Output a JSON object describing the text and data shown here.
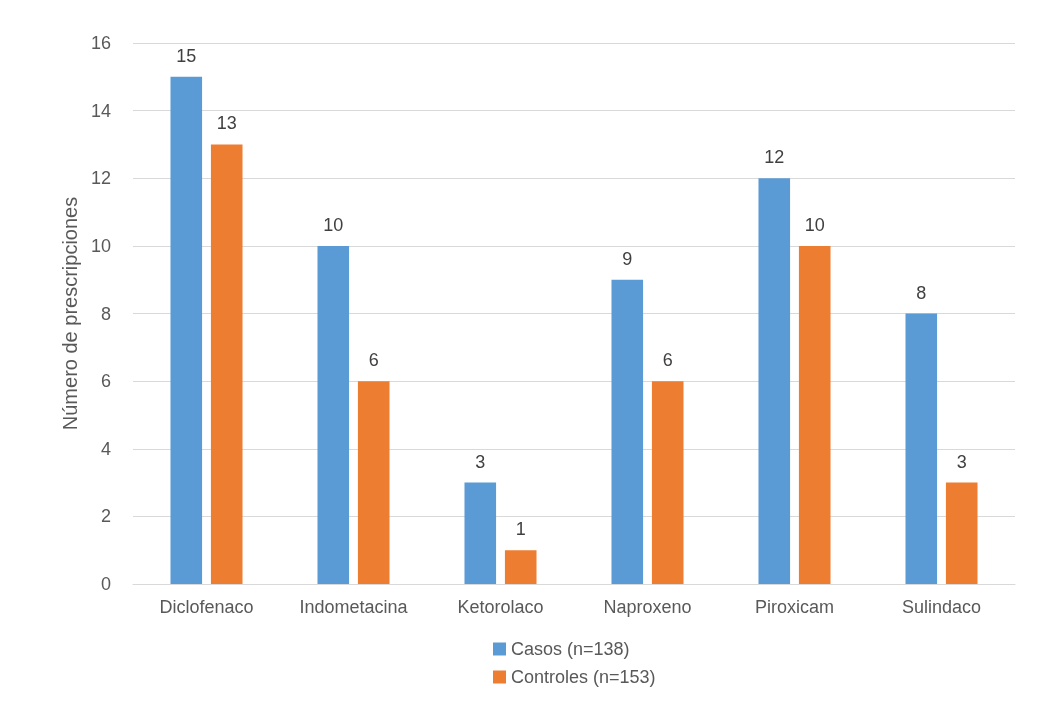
{
  "chart_data": {
    "type": "bar",
    "ylabel": "Número de prescripciones",
    "categories": [
      "Diclofenaco",
      "Indometacina",
      "Ketorolaco",
      "Naproxeno",
      "Piroxicam",
      "Sulindaco"
    ],
    "series": [
      {
        "name": "Casos (n=138)",
        "color": "#5b9bd5",
        "values": [
          15,
          10,
          3,
          9,
          12,
          8
        ]
      },
      {
        "name": "Controles (n=153)",
        "color": "#ed7d31",
        "values": [
          13,
          6,
          1,
          6,
          10,
          3
        ]
      }
    ],
    "ylim": [
      0,
      16
    ],
    "yticks": [
      0,
      2,
      4,
      6,
      8,
      10,
      12,
      14,
      16
    ],
    "grid": "y",
    "legend": "bottom",
    "data_labels": true
  }
}
